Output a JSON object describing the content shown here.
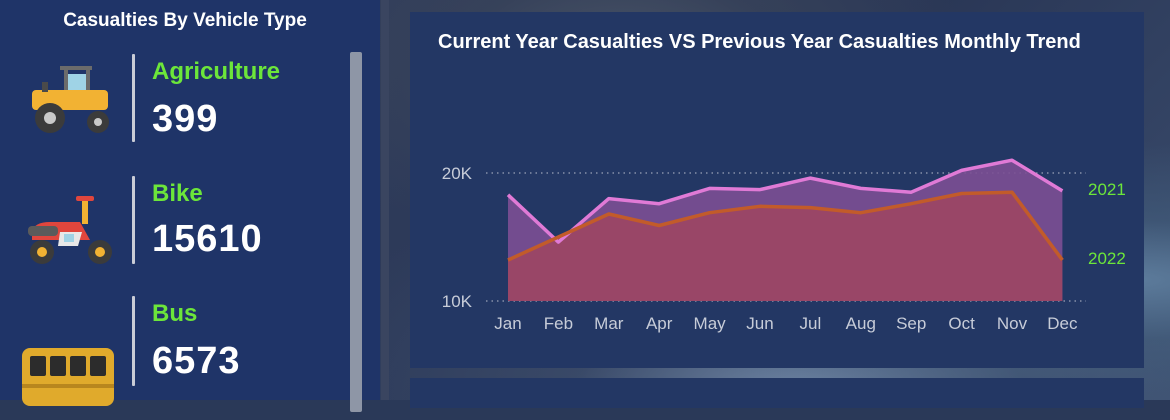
{
  "left_panel": {
    "title": "Casualties By Vehicle Type",
    "items": [
      {
        "label": "Agriculture",
        "value": "399",
        "icon": "tractor-icon"
      },
      {
        "label": "Bike",
        "value": "15610",
        "icon": "motorbike-icon"
      },
      {
        "label": "Bus",
        "value": "6573",
        "icon": "bus-icon"
      }
    ]
  },
  "chart": {
    "title": "Current Year Casualties VS Previous Year Casualties Monthly Trend"
  },
  "colors": {
    "accent_green": "#6ce63a",
    "series_2021": "#d86bd0",
    "series_2022": "#c0602a"
  },
  "chart_data": {
    "type": "area",
    "title": "Current Year Casualties VS Previous Year Casualties Monthly Trend",
    "categories": [
      "Jan",
      "Feb",
      "Mar",
      "Apr",
      "May",
      "Jun",
      "Jul",
      "Aug",
      "Sep",
      "Oct",
      "Nov",
      "Dec"
    ],
    "y_ticks": [
      "20K",
      "10K"
    ],
    "ylim": [
      10000,
      20000
    ],
    "series": [
      {
        "name": "2021",
        "values": [
          18300,
          14600,
          18000,
          17600,
          18800,
          18700,
          19600,
          18800,
          18500,
          20200,
          21000,
          18600
        ]
      },
      {
        "name": "2022",
        "values": [
          13200,
          15000,
          16800,
          15900,
          16900,
          17400,
          17300,
          16900,
          17600,
          18400,
          18500,
          13200
        ]
      }
    ],
    "grid": true,
    "legend": "inline-right"
  }
}
